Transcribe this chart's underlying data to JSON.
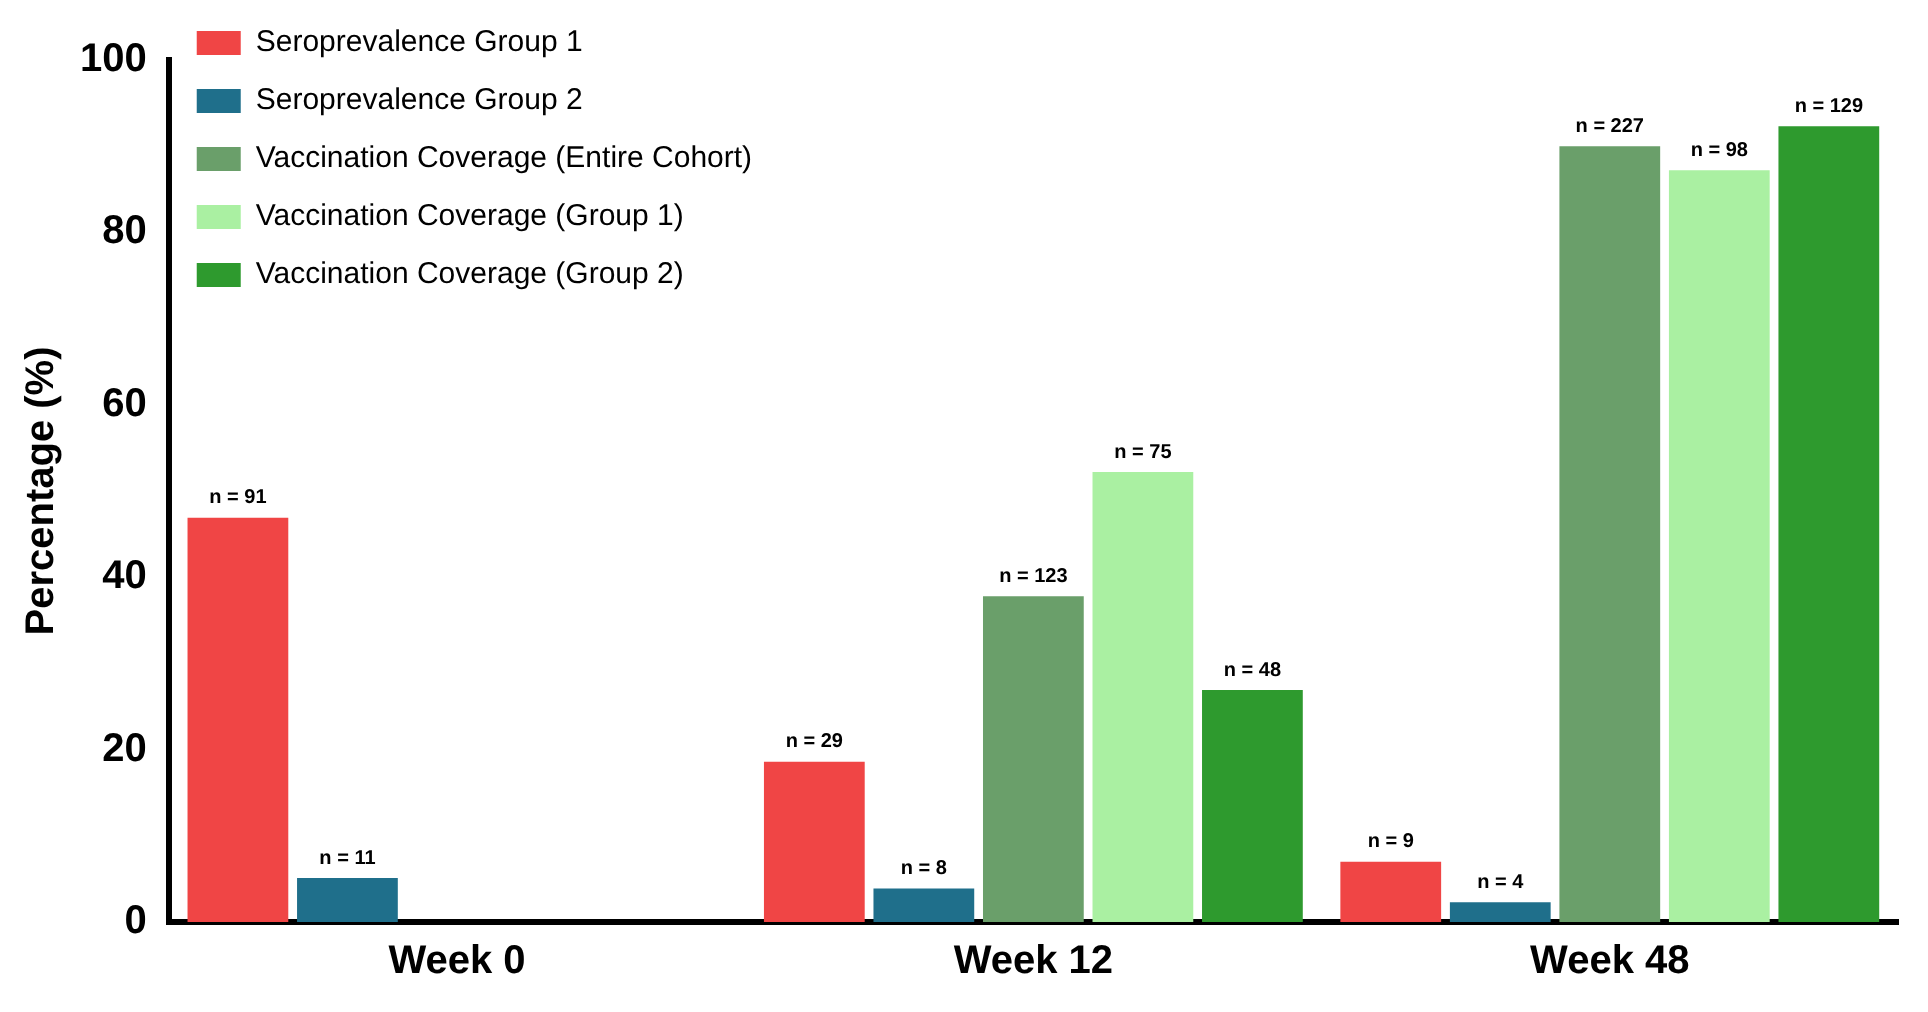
{
  "chart_data": {
    "type": "bar",
    "ylabel": "Percentage (%)",
    "categories": [
      "Week 0",
      "Week 12",
      "Week 48"
    ],
    "series": [
      {
        "name": "Seroprevalence Group 1",
        "color": "#f04545",
        "values": [
          46.9,
          18.6,
          7.0
        ]
      },
      {
        "name": "Seroprevalence Group 2",
        "color": "#1f6f8b",
        "values": [
          5.1,
          3.9,
          2.3
        ]
      },
      {
        "name": "Vaccination Coverage (Entire Cohort)",
        "color": "#6a9f6a",
        "values": [
          null,
          37.8,
          90.0
        ]
      },
      {
        "name": "Vaccination Coverage (Group 1)",
        "color": "#aaf0a2",
        "values": [
          null,
          52.2,
          87.2
        ]
      },
      {
        "name": "Vaccination Coverage (Group 2)",
        "color": "#2e9a2e",
        "values": [
          null,
          26.9,
          92.3
        ]
      }
    ],
    "annotations": [
      "n = 91",
      "n = 11",
      "n = 29",
      "n = 8",
      "n = 123",
      "n = 75",
      "n = 48",
      "n = 9",
      "n = 4",
      "n = 227",
      "n = 98",
      "n = 129"
    ],
    "ylim": [
      0,
      100
    ],
    "yticks": [
      0,
      20,
      40,
      60,
      80,
      100
    ],
    "grid": false,
    "legend": "top left"
  }
}
